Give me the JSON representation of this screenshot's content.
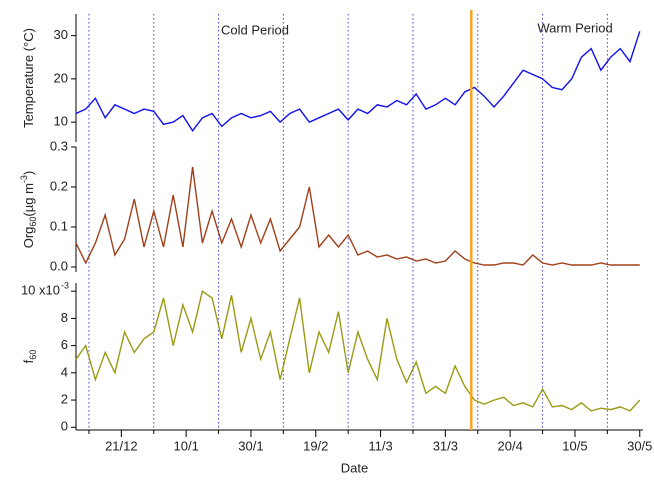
{
  "chart_data": [
    {
      "type": "line",
      "ylabel": [
        {
          "text": "Temperature (°C)"
        }
      ],
      "color": "#1010f0",
      "annotations": [
        "Cold Period",
        "Warm Period"
      ],
      "xlim": [
        "7/12",
        "31/5"
      ],
      "x": [
        "7/12",
        "10/12",
        "13/12",
        "16/12",
        "19/12",
        "22/12",
        "25/12",
        "28/12",
        "31/12",
        "3/1",
        "6/1",
        "9/1",
        "12/1",
        "15/1",
        "18/1",
        "21/1",
        "24/1",
        "27/1",
        "30/1",
        "2/2",
        "5/2",
        "8/2",
        "11/2",
        "14/2",
        "17/2",
        "20/2",
        "23/2",
        "26/2",
        "1/3",
        "4/3",
        "7/3",
        "10/3",
        "13/3",
        "16/3",
        "19/3",
        "22/3",
        "25/3",
        "28/3",
        "31/3",
        "3/4",
        "6/4",
        "9/4",
        "12/4",
        "15/4",
        "18/4",
        "21/4",
        "24/4",
        "27/4",
        "30/4",
        "3/5",
        "6/5",
        "9/5",
        "12/5",
        "15/5",
        "18/5",
        "21/5",
        "24/5",
        "27/5",
        "30/5"
      ],
      "values": [
        12,
        13,
        15.5,
        11,
        14,
        13,
        12,
        13,
        12.5,
        9.5,
        10,
        11.5,
        8,
        11,
        12,
        9,
        11,
        12,
        11,
        11.5,
        12.5,
        10,
        12,
        13,
        10,
        11,
        12,
        13,
        10.5,
        13,
        12,
        14,
        13.5,
        15,
        14,
        16.5,
        13,
        14,
        15.5,
        14,
        17,
        18,
        16,
        13.5,
        16,
        19,
        22,
        21,
        20,
        18,
        17.5,
        20,
        25,
        27,
        22,
        25,
        27,
        24,
        31
      ],
      "ylim": [
        5.4,
        35
      ],
      "yticks": [
        10,
        20,
        30
      ]
    },
    {
      "type": "line",
      "ylabel": [
        {
          "text": "Org"
        },
        {
          "text": "60",
          "sub": true
        },
        {
          "text": "(µg m"
        },
        {
          "text": "-3",
          "sup": true
        },
        {
          "text": ")"
        }
      ],
      "color": "#a0401a",
      "xlim": [
        "7/12",
        "31/5"
      ],
      "x": [
        "7/12",
        "10/12",
        "13/12",
        "16/12",
        "19/12",
        "22/12",
        "25/12",
        "28/12",
        "31/12",
        "3/1",
        "6/1",
        "9/1",
        "12/1",
        "15/1",
        "18/1",
        "21/1",
        "24/1",
        "27/1",
        "30/1",
        "2/2",
        "5/2",
        "8/2",
        "11/2",
        "14/2",
        "17/2",
        "20/2",
        "23/2",
        "26/2",
        "1/3",
        "4/3",
        "7/3",
        "10/3",
        "13/3",
        "16/3",
        "19/3",
        "22/3",
        "25/3",
        "28/3",
        "31/3",
        "3/4",
        "6/4",
        "9/4",
        "12/4",
        "15/4",
        "18/4",
        "21/4",
        "24/4",
        "27/4",
        "30/4",
        "3/5",
        "6/5",
        "9/5",
        "12/5",
        "15/5",
        "18/5",
        "21/5",
        "24/5",
        "27/5",
        "30/5"
      ],
      "values": [
        0.06,
        0.01,
        0.06,
        0.13,
        0.03,
        0.07,
        0.17,
        0.05,
        0.14,
        0.05,
        0.18,
        0.05,
        0.25,
        0.06,
        0.14,
        0.06,
        0.12,
        0.05,
        0.13,
        0.06,
        0.12,
        0.04,
        0.07,
        0.1,
        0.2,
        0.05,
        0.08,
        0.05,
        0.08,
        0.03,
        0.04,
        0.025,
        0.03,
        0.02,
        0.025,
        0.015,
        0.02,
        0.01,
        0.015,
        0.04,
        0.02,
        0.01,
        0.005,
        0.005,
        0.01,
        0.01,
        0.005,
        0.03,
        0.01,
        0.005,
        0.01,
        0.005,
        0.005,
        0.005,
        0.01,
        0.005,
        0.005,
        0.005,
        0.005
      ],
      "ylim": [
        -0.0125,
        0.3
      ],
      "yticks": [
        {
          "value": 0,
          "label": "0.0"
        },
        0.1,
        0.2,
        0.3
      ]
    },
    {
      "type": "line",
      "ylabel": [
        {
          "text": "f"
        },
        {
          "text": "60",
          "sub": true
        }
      ],
      "color": "#9a9a14",
      "xlabel": "Date",
      "xlim": [
        "7/12",
        "31/5"
      ],
      "x": [
        "7/12",
        "10/12",
        "13/12",
        "16/12",
        "19/12",
        "22/12",
        "25/12",
        "28/12",
        "31/12",
        "3/1",
        "6/1",
        "9/1",
        "12/1",
        "15/1",
        "18/1",
        "21/1",
        "24/1",
        "27/1",
        "30/1",
        "2/2",
        "5/2",
        "8/2",
        "11/2",
        "14/2",
        "17/2",
        "20/2",
        "23/2",
        "26/2",
        "1/3",
        "4/3",
        "7/3",
        "10/3",
        "13/3",
        "16/3",
        "19/3",
        "22/3",
        "25/3",
        "28/3",
        "31/3",
        "3/4",
        "6/4",
        "9/4",
        "12/4",
        "15/4",
        "18/4",
        "21/4",
        "24/4",
        "27/4",
        "30/4",
        "3/5",
        "6/5",
        "9/5",
        "12/5",
        "15/5",
        "18/5",
        "21/5",
        "24/5",
        "27/5",
        "30/5"
      ],
      "values": [
        5,
        6,
        3.5,
        5.5,
        4,
        7,
        5.5,
        6.5,
        7,
        9.5,
        6,
        9,
        7,
        10,
        9.5,
        6.5,
        9.7,
        5.5,
        8,
        5,
        7,
        3.5,
        6.5,
        9.5,
        4,
        7,
        5.5,
        8.5,
        4,
        7,
        5,
        3.5,
        8,
        5,
        3.3,
        4.8,
        2.5,
        3,
        2.5,
        4.5,
        3,
        2,
        1.7,
        2,
        2.2,
        1.6,
        1.8,
        1.5,
        2.8,
        1.5,
        1.6,
        1.3,
        1.8,
        1.2,
        1.4,
        1.3,
        1.5,
        1.2,
        2.0
      ],
      "ylim": [
        -0.2,
        10.6
      ],
      "yticks": [
        0,
        2,
        4,
        6,
        8,
        {
          "value": 10,
          "label": "10 x10"
        }
      ],
      "yexponent": "-3",
      "xticks": [
        "21/12",
        "10/1",
        "30/1",
        "19/2",
        "11/3",
        "31/3",
        "20/4",
        "10/5",
        "30/5"
      ],
      "xgrid": [
        "11/12",
        "31/12",
        "20/1",
        "9/2",
        "1/3",
        "21/3",
        "10/4",
        "30/4",
        "20/5"
      ],
      "xgrid_color": "#4040e0",
      "divider": "8/4",
      "divider_color": "#f5a623"
    }
  ]
}
